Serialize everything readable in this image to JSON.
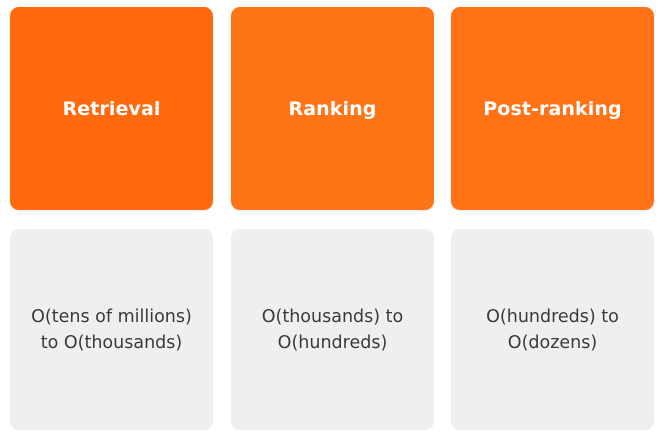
{
  "stages": [
    {
      "label": "Retrieval",
      "scale": "O(tens of millions)\nto O(thousands)"
    },
    {
      "label": "Ranking",
      "scale": "O(thousands) to\nO(hundreds)"
    },
    {
      "label": "Post-ranking",
      "scale": "O(hundreds) to\nO(dozens)"
    }
  ],
  "colors": {
    "stage_fill": "#ff6b10",
    "stage_text": "#ffffff",
    "scale_fill": "#efefef",
    "scale_text": "#3a3a3a"
  }
}
